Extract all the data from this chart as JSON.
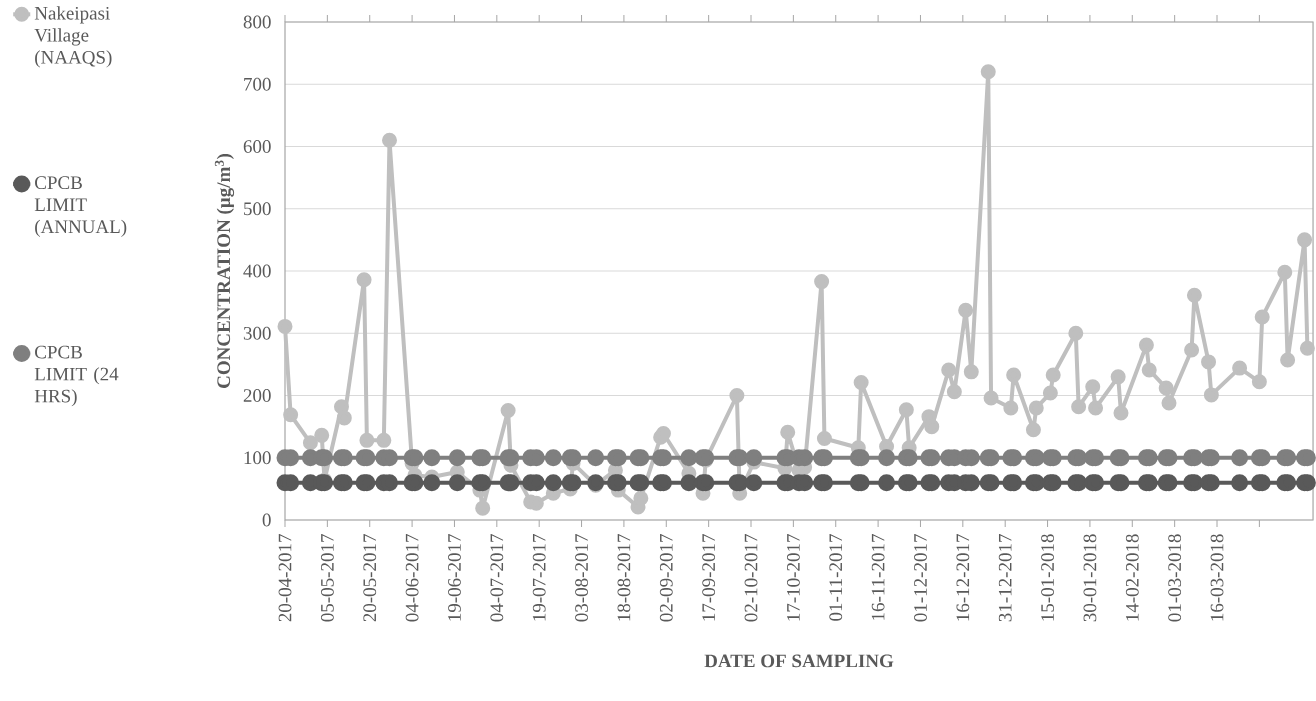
{
  "chart_data": {
    "type": "line",
    "xlabel": "DATE OF SAMPLING",
    "ylabel": "**CONCENTRATION (µg/m$^{3}$)**",
    "x": [
      "2017-04-20",
      "2017-04-22",
      "2017-04-29",
      "2017-05-03",
      "2017-05-04",
      "2017-05-10",
      "2017-05-11",
      "2017-05-18",
      "2017-05-19",
      "2017-05-25",
      "2017-05-27",
      "2017-06-04",
      "2017-06-05",
      "2017-06-11",
      "2017-06-20",
      "2017-06-28",
      "2017-06-29",
      "2017-07-08",
      "2017-07-09",
      "2017-07-16",
      "2017-07-18",
      "2017-07-24",
      "2017-07-30",
      "2017-07-31",
      "2017-08-08",
      "2017-08-15",
      "2017-08-16",
      "2017-08-23",
      "2017-08-24",
      "2017-08-31",
      "2017-09-01",
      "2017-09-10",
      "2017-09-15",
      "2017-09-16",
      "2017-09-27",
      "2017-09-28",
      "2017-10-03",
      "2017-10-14",
      "2017-10-15",
      "2017-10-19",
      "2017-10-21",
      "2017-10-27",
      "2017-10-28",
      "2017-11-09",
      "2017-11-10",
      "2017-11-19",
      "2017-11-26",
      "2017-11-27",
      "2017-12-04",
      "2017-12-05",
      "2017-12-11",
      "2017-12-13",
      "2017-12-17",
      "2017-12-19",
      "2017-12-25",
      "2017-12-26",
      "2018-01-02",
      "2018-01-03",
      "2018-01-10",
      "2018-01-11",
      "2018-01-16",
      "2018-01-17",
      "2018-01-25",
      "2018-01-26",
      "2018-01-31",
      "2018-02-01",
      "2018-02-09",
      "2018-02-10",
      "2018-02-19",
      "2018-02-20",
      "2018-02-26",
      "2018-02-27",
      "2018-03-07",
      "2018-03-08",
      "2018-03-13",
      "2018-03-14",
      "2018-03-24",
      "2018-03-31",
      "2018-04-01",
      "2018-04-09",
      "2018-04-10",
      "2018-04-16",
      "2018-04-17"
    ],
    "series": [
      {
        "name": "Nakeipasi Village (NAAQS)",
        "color": "#bfbfbf",
        "values": [
          311,
          169,
          124,
          136,
          64,
          182,
          164,
          386,
          128,
          128,
          610,
          91,
          72,
          69,
          77,
          48,
          19,
          176,
          88,
          29,
          27,
          43,
          50,
          91,
          56,
          80,
          48,
          21,
          35,
          133,
          139,
          75,
          43,
          96,
          200,
          43,
          93,
          83,
          141,
          80,
          85,
          383,
          131,
          116,
          221,
          118,
          177,
          116,
          166,
          150,
          241,
          206,
          337,
          238,
          720,
          196,
          180,
          233,
          145,
          180,
          204,
          233,
          300,
          182,
          214,
          180,
          230,
          172,
          281,
          241,
          212,
          188,
          273,
          361,
          254,
          201,
          244,
          222,
          326,
          398,
          257,
          450,
          276
        ]
      },
      {
        "name": "CPCB LIMIT (ANNUAL)",
        "color": "#595959",
        "values": [
          60,
          60,
          60,
          60,
          60,
          60,
          60,
          60,
          60,
          60,
          60,
          60,
          60,
          60,
          60,
          60,
          60,
          60,
          60,
          60,
          60,
          60,
          60,
          60,
          60,
          60,
          60,
          60,
          60,
          60,
          60,
          60,
          60,
          60,
          60,
          60,
          60,
          60,
          60,
          60,
          60,
          60,
          60,
          60,
          60,
          60,
          60,
          60,
          60,
          60,
          60,
          60,
          60,
          60,
          60,
          60,
          60,
          60,
          60,
          60,
          60,
          60,
          60,
          60,
          60,
          60,
          60,
          60,
          60,
          60,
          60,
          60,
          60,
          60,
          60,
          60,
          60,
          60,
          60,
          60,
          60,
          60,
          60
        ]
      },
      {
        "name": "CPCB LIMIT (24 HRS)",
        "color": "#7f7f7f",
        "values": [
          100,
          100,
          100,
          100,
          100,
          100,
          100,
          100,
          100,
          100,
          100,
          100,
          100,
          100,
          100,
          100,
          100,
          100,
          100,
          100,
          100,
          100,
          100,
          100,
          100,
          100,
          100,
          100,
          100,
          100,
          100,
          100,
          100,
          100,
          100,
          100,
          100,
          100,
          100,
          100,
          100,
          100,
          100,
          100,
          100,
          100,
          100,
          100,
          100,
          100,
          100,
          100,
          100,
          100,
          100,
          100,
          100,
          100,
          100,
          100,
          100,
          100,
          100,
          100,
          100,
          100,
          100,
          100,
          100,
          100,
          100,
          100,
          100,
          100,
          100,
          100,
          100,
          100,
          100,
          100,
          100,
          100,
          100
        ]
      }
    ],
    "xlim": [
      "2017-04-20",
      "2018-04-19"
    ],
    "xticks": [
      {
        "value": "2017-04-20",
        "label": "20-04-2017"
      },
      {
        "value": "2017-05-05",
        "label": "05-05-2017"
      },
      {
        "value": "2017-05-20",
        "label": "20-05-2017"
      },
      {
        "value": "2017-06-04",
        "label": "04-06-2017"
      },
      {
        "value": "2017-06-19",
        "label": "19-06-2017"
      },
      {
        "value": "2017-07-04",
        "label": "04-07-2017"
      },
      {
        "value": "2017-07-19",
        "label": "19-07-2017"
      },
      {
        "value": "2017-08-03",
        "label": "03-08-2017"
      },
      {
        "value": "2017-08-18",
        "label": "18-08-2017"
      },
      {
        "value": "2017-09-02",
        "label": "02-09-2017"
      },
      {
        "value": "2017-09-17",
        "label": "17-09-2017"
      },
      {
        "value": "2017-10-02",
        "label": "02-10-2017"
      },
      {
        "value": "2017-10-17",
        "label": "17-10-2017"
      },
      {
        "value": "2017-11-01",
        "label": "01-11-2017"
      },
      {
        "value": "2017-11-16",
        "label": "16-11-2017"
      },
      {
        "value": "2017-12-01",
        "label": "01-12-2017"
      },
      {
        "value": "2017-12-16",
        "label": "16-12-2017"
      },
      {
        "value": "2017-12-31",
        "label": "31-12-2017"
      },
      {
        "value": "2018-01-15",
        "label": "15-01-2018"
      },
      {
        "value": "2018-01-30",
        "label": "30-01-2018"
      },
      {
        "value": "2018-02-14",
        "label": "14-02-2018"
      },
      {
        "value": "2018-03-01",
        "label": "01-03-2018"
      },
      {
        "value": "2018-03-16",
        "label": "16-03-2018"
      },
      {
        "value": "2018-03-31",
        "label": null
      }
    ],
    "ylim": [
      0,
      800
    ],
    "yticks": [
      0,
      100,
      200,
      300,
      400,
      500,
      600,
      700,
      800
    ],
    "grid": "y",
    "legend": "left",
    "marker": "circle"
  }
}
